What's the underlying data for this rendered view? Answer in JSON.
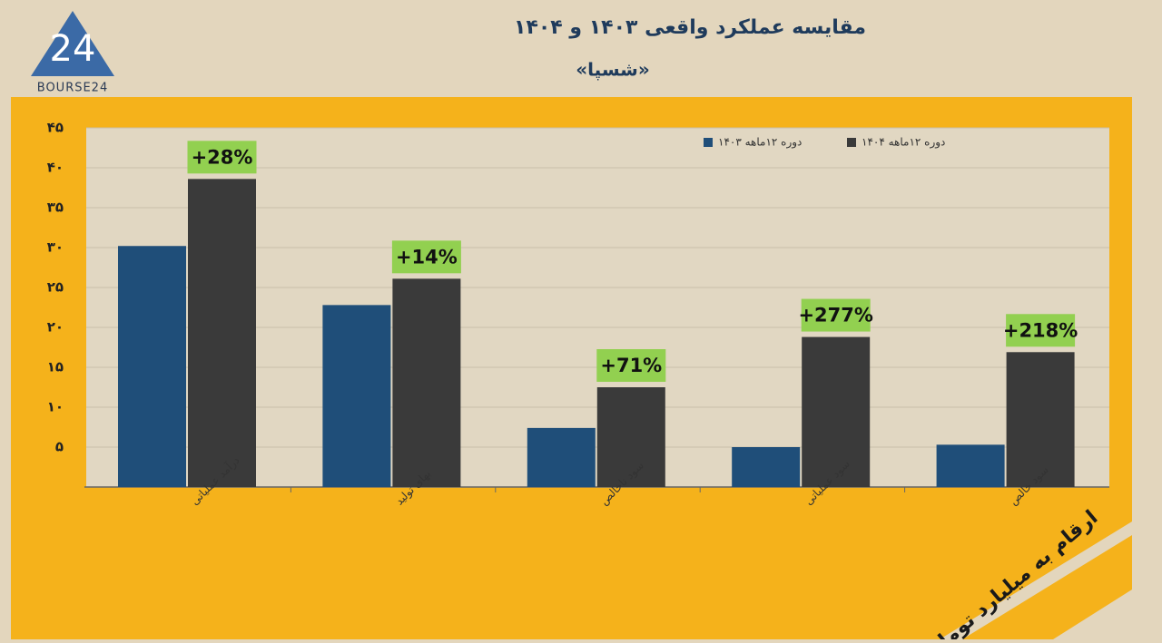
{
  "logo": {
    "mark": "24",
    "name": "BOURSE24"
  },
  "chart_data": {
    "type": "bar",
    "title": "مقایسه عملکرد واقعی ۱۴۰۳ و ۱۴۰۴",
    "subtitle": "«شسپا»",
    "unit_note": "ارقام به میلیارد تومان",
    "categories": [
      "درآمد عملیاتی",
      "بهای تولید",
      "سود ناخالص",
      "سود عملیاتی",
      "سود خالص"
    ],
    "series": [
      {
        "name": "دوره ۱۲ماهه ۱۴۰۳",
        "color": "#1f4e79",
        "values": [
          30.2,
          22.8,
          7.4,
          5.0,
          5.3
        ]
      },
      {
        "name": "دوره ۱۲ماهه ۱۴۰۴",
        "color": "#3a3a3a",
        "values": [
          38.6,
          26.1,
          12.5,
          18.8,
          16.9
        ]
      }
    ],
    "change_labels": [
      "+28%",
      "+14%",
      "+71%",
      "+277%",
      "+218%"
    ],
    "ylim": [
      0,
      45
    ],
    "yticks": [
      {
        "value": 5,
        "label": "۵"
      },
      {
        "value": 10,
        "label": "۱۰"
      },
      {
        "value": 15,
        "label": "۱۵"
      },
      {
        "value": 20,
        "label": "۲۰"
      },
      {
        "value": 25,
        "label": "۲۵"
      },
      {
        "value": 30,
        "label": "۳۰"
      },
      {
        "value": 35,
        "label": "۳۵"
      },
      {
        "value": 40,
        "label": "۴۰"
      },
      {
        "value": 45,
        "label": "۴۵"
      }
    ],
    "grid": true
  }
}
